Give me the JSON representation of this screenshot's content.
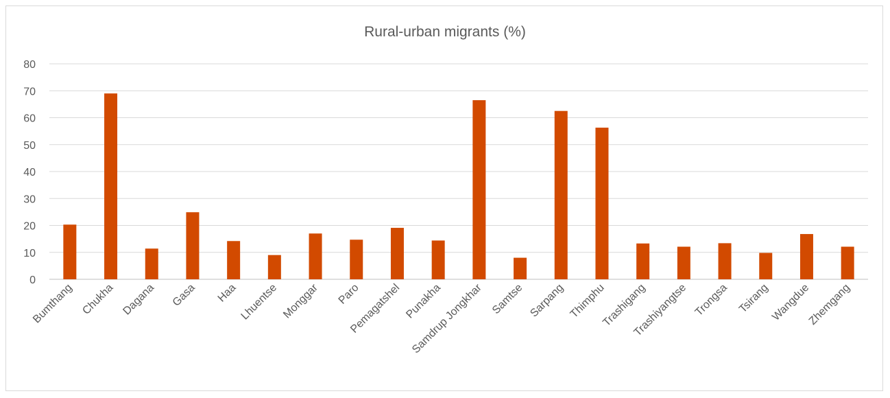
{
  "chart_data": {
    "type": "bar",
    "title": "Rural-urban migrants (%)",
    "xlabel": "",
    "ylabel": "",
    "ylim": [
      0,
      80
    ],
    "yticks": [
      0,
      10,
      20,
      30,
      40,
      50,
      60,
      70,
      80
    ],
    "grid": true,
    "legend": "none",
    "bar_color": "#D24A00",
    "categories": [
      "Bumthang",
      "Chukha",
      "Dagana",
      "Gasa",
      "Haa",
      "Lhuentse",
      "Monggar",
      "Paro",
      "Pemagatshel",
      "Punakha",
      "Samdrup Jongkhar",
      "Samtse",
      "Sarpang",
      "Thimphu",
      "Trashigang",
      "Trashiyangtse",
      "Trongsa",
      "Tsirang",
      "Wangdue",
      "Zhemgang"
    ],
    "values": [
      20.3,
      69.0,
      11.4,
      24.9,
      14.2,
      9.0,
      17.0,
      14.7,
      19.1,
      14.4,
      66.5,
      8.0,
      62.5,
      56.3,
      13.3,
      12.1,
      13.4,
      9.8,
      16.8,
      12.1
    ]
  }
}
